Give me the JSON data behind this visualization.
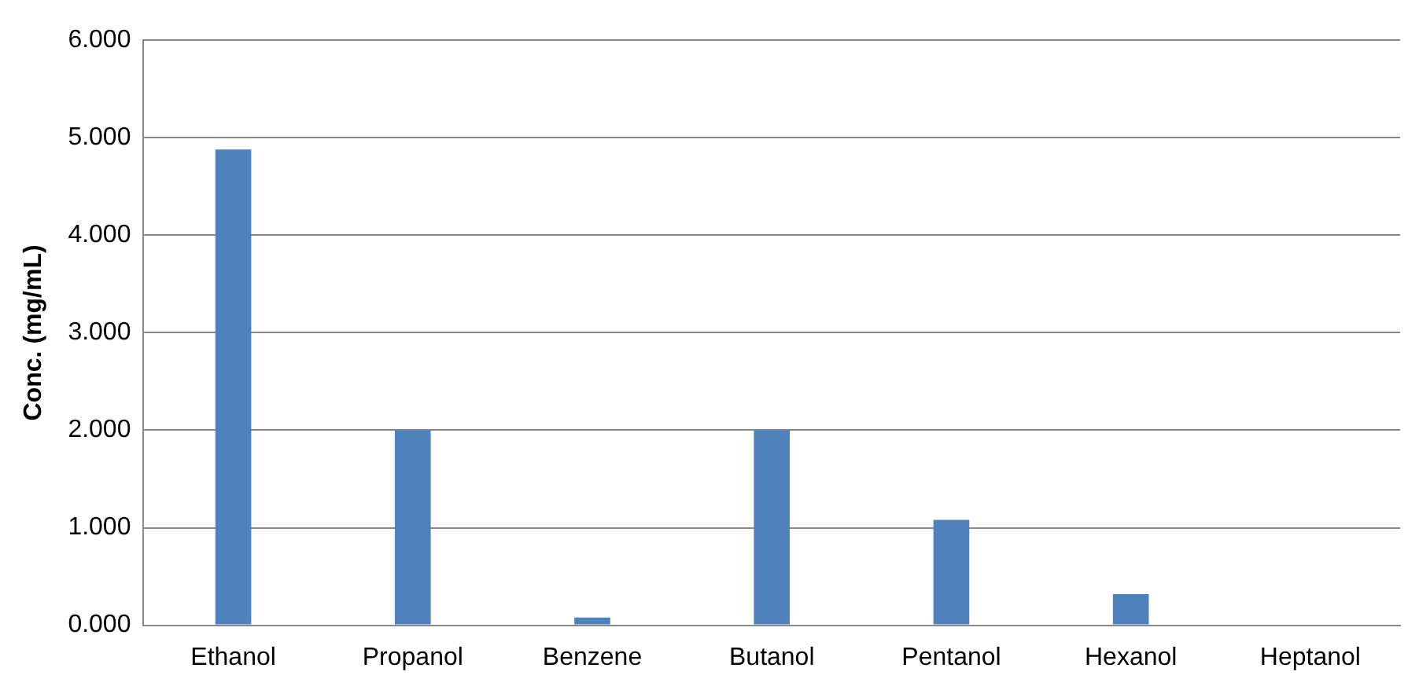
{
  "chart_data": {
    "type": "bar",
    "ylabel": "Conc. (mg/mL)",
    "categories": [
      "Ethanol",
      "Propanol",
      "Benzene",
      "Butanol",
      "Pentanol",
      "Hexanol",
      "Heptanol"
    ],
    "values": [
      4.88,
      2.0,
      0.08,
      2.0,
      1.08,
      0.32,
      0
    ],
    "color": "#4f81bd",
    "ylim": [
      0,
      6
    ],
    "yticks": [
      {
        "value": 0,
        "label": "0.000"
      },
      {
        "value": 1,
        "label": "1.000"
      },
      {
        "value": 2,
        "label": "2.000"
      },
      {
        "value": 3,
        "label": "3.000"
      },
      {
        "value": 4,
        "label": "4.000"
      },
      {
        "value": 5,
        "label": "5.000"
      },
      {
        "value": 6,
        "label": "6.000"
      }
    ],
    "grid": "y",
    "legend": false
  }
}
